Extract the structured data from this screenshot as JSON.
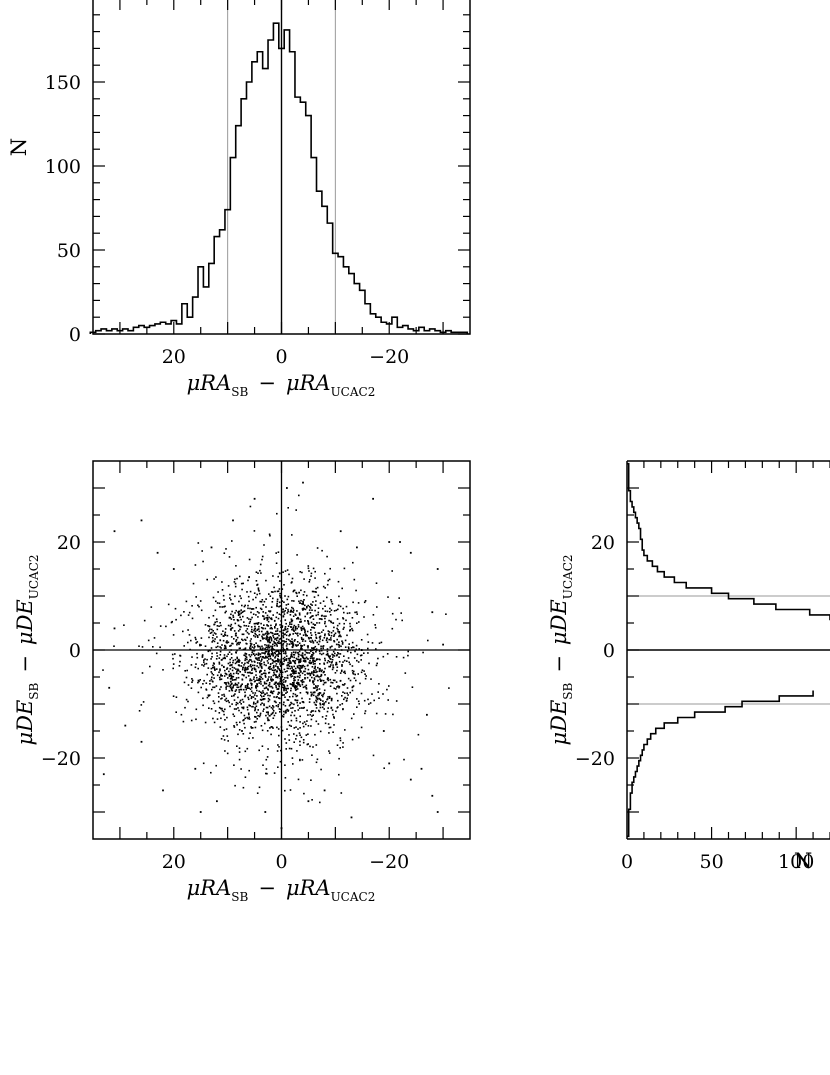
{
  "chart_data": [
    {
      "panel": "ra-histogram",
      "type": "histogram",
      "xlim": [
        35,
        -35
      ],
      "ylim": [
        0,
        200
      ],
      "x_ticks": [
        20,
        0,
        -20
      ],
      "x_tick_labels": [
        "20",
        "0",
        "−20"
      ],
      "y_ticks": [
        0,
        50,
        100,
        150
      ],
      "y_tick_labels": [
        "0",
        "50",
        "100",
        "150"
      ],
      "xlabel": {
        "sym": "μRA",
        "sub1": "SB",
        "dash": "−",
        "sub2": "UCAC2"
      },
      "ylabel": "N",
      "reference_lines_x": [
        10,
        0,
        -10
      ],
      "bin_width": 1,
      "bins": [
        {
          "x": 35,
          "n": 1
        },
        {
          "x": 34,
          "n": 2
        },
        {
          "x": 33,
          "n": 3
        },
        {
          "x": 32,
          "n": 2
        },
        {
          "x": 31,
          "n": 3
        },
        {
          "x": 30,
          "n": 2
        },
        {
          "x": 29,
          "n": 3
        },
        {
          "x": 28,
          "n": 2
        },
        {
          "x": 27,
          "n": 4
        },
        {
          "x": 26,
          "n": 5
        },
        {
          "x": 25,
          "n": 4
        },
        {
          "x": 24,
          "n": 5
        },
        {
          "x": 23,
          "n": 6
        },
        {
          "x": 22,
          "n": 7
        },
        {
          "x": 21,
          "n": 6
        },
        {
          "x": 20,
          "n": 8
        },
        {
          "x": 19,
          "n": 6
        },
        {
          "x": 18,
          "n": 18
        },
        {
          "x": 17,
          "n": 10
        },
        {
          "x": 16,
          "n": 22
        },
        {
          "x": 15,
          "n": 40
        },
        {
          "x": 14,
          "n": 28
        },
        {
          "x": 13,
          "n": 42
        },
        {
          "x": 12,
          "n": 58
        },
        {
          "x": 11,
          "n": 62
        },
        {
          "x": 10,
          "n": 74
        },
        {
          "x": 9,
          "n": 105
        },
        {
          "x": 8,
          "n": 124
        },
        {
          "x": 7,
          "n": 140
        },
        {
          "x": 6,
          "n": 150
        },
        {
          "x": 5,
          "n": 162
        },
        {
          "x": 4,
          "n": 168
        },
        {
          "x": 3,
          "n": 158
        },
        {
          "x": 2,
          "n": 175
        },
        {
          "x": 1,
          "n": 185
        },
        {
          "x": 0,
          "n": 170
        },
        {
          "x": -1,
          "n": 181
        },
        {
          "x": -2,
          "n": 168
        },
        {
          "x": -3,
          "n": 141
        },
        {
          "x": -4,
          "n": 138
        },
        {
          "x": -5,
          "n": 130
        },
        {
          "x": -6,
          "n": 105
        },
        {
          "x": -7,
          "n": 85
        },
        {
          "x": -8,
          "n": 76
        },
        {
          "x": -9,
          "n": 66
        },
        {
          "x": -10,
          "n": 48
        },
        {
          "x": -11,
          "n": 46
        },
        {
          "x": -12,
          "n": 40
        },
        {
          "x": -13,
          "n": 36
        },
        {
          "x": -14,
          "n": 30
        },
        {
          "x": -15,
          "n": 26
        },
        {
          "x": -16,
          "n": 18
        },
        {
          "x": -17,
          "n": 12
        },
        {
          "x": -18,
          "n": 10
        },
        {
          "x": -19,
          "n": 7
        },
        {
          "x": -20,
          "n": 6
        },
        {
          "x": -21,
          "n": 10
        },
        {
          "x": -22,
          "n": 4
        },
        {
          "x": -23,
          "n": 5
        },
        {
          "x": -24,
          "n": 3
        },
        {
          "x": -25,
          "n": 2
        },
        {
          "x": -26,
          "n": 4
        },
        {
          "x": -27,
          "n": 2
        },
        {
          "x": -28,
          "n": 3
        },
        {
          "x": -29,
          "n": 2
        },
        {
          "x": -30,
          "n": 1
        },
        {
          "x": -31,
          "n": 2
        },
        {
          "x": -32,
          "n": 1
        },
        {
          "x": -33,
          "n": 1
        },
        {
          "x": -34,
          "n": 1
        }
      ]
    },
    {
      "panel": "scatter",
      "type": "scatter",
      "xlim": [
        35,
        -35
      ],
      "ylim": [
        -35,
        35
      ],
      "x_ticks": [
        20,
        0,
        -20
      ],
      "x_tick_labels": [
        "20",
        "0",
        "−20"
      ],
      "y_ticks": [
        20,
        0,
        -20
      ],
      "y_tick_labels": [
        "20",
        "0",
        "−20"
      ],
      "xlabel": {
        "sym": "μRA",
        "sub1": "SB",
        "dash": "−",
        "sub2": "UCAC2"
      },
      "ylabel": {
        "sym": "μDE",
        "sub1": "SB",
        "dash": "−",
        "sub2": "UCAC2"
      },
      "reference_lines_x": [
        0
      ],
      "reference_lines_y": [
        0
      ],
      "n_points_approx": 2600,
      "distribution": "centrally concentrated cloud around (0, -2), spread ~8 in each axis",
      "points": [
        [
          31,
          22
        ],
        [
          33,
          -23
        ],
        [
          26,
          24
        ],
        [
          23,
          18
        ],
        [
          20,
          15
        ],
        [
          29,
          -14
        ],
        [
          26,
          -17
        ],
        [
          22,
          -26
        ],
        [
          16,
          -22
        ],
        [
          12,
          -28
        ],
        [
          5,
          28
        ],
        [
          -1,
          30
        ],
        [
          -4,
          31
        ],
        [
          -17,
          28
        ],
        [
          -20,
          20
        ],
        [
          -22,
          20
        ],
        [
          -24,
          18
        ],
        [
          -29,
          15
        ],
        [
          -20,
          -21
        ],
        [
          -26,
          -22
        ],
        [
          -28,
          -27
        ],
        [
          -29,
          -30
        ],
        [
          -24,
          -24
        ],
        [
          0,
          -33
        ],
        [
          3,
          -30
        ],
        [
          -8,
          -26
        ],
        [
          13,
          19
        ],
        [
          9,
          24
        ],
        [
          -11,
          22
        ],
        [
          -14,
          19
        ],
        [
          -19,
          -15
        ],
        [
          31,
          4
        ],
        [
          32,
          -7
        ],
        [
          -28,
          7
        ],
        [
          -30,
          1
        ],
        [
          -27,
          -12
        ],
        [
          15,
          -30
        ],
        [
          -5,
          -28
        ],
        [
          -13,
          -31
        ]
      ]
    },
    {
      "panel": "de-histogram",
      "type": "histogram",
      "orientation": "horizontal",
      "xlim": [
        0,
        120
      ],
      "ylim": [
        -35,
        35
      ],
      "x_ticks": [
        0,
        50,
        100
      ],
      "x_tick_labels": [
        "0",
        "50",
        "100"
      ],
      "y_ticks": [
        20,
        0,
        -20
      ],
      "y_tick_labels": [
        "20",
        "0",
        "−20"
      ],
      "xlabel": "N",
      "ylabel": {
        "sym": "μDE",
        "sub1": "SB",
        "dash": "−",
        "sub2": "UCAC2"
      },
      "reference_lines_y": [
        10,
        0,
        -10
      ],
      "bin_width": 1,
      "bins": [
        {
          "y": 34,
          "n": 1
        },
        {
          "y": 33,
          "n": 1
        },
        {
          "y": 32,
          "n": 1
        },
        {
          "y": 31,
          "n": 1
        },
        {
          "y": 30,
          "n": 1
        },
        {
          "y": 29,
          "n": 2
        },
        {
          "y": 28,
          "n": 2
        },
        {
          "y": 27,
          "n": 3
        },
        {
          "y": 26,
          "n": 4
        },
        {
          "y": 25,
          "n": 5
        },
        {
          "y": 24,
          "n": 6
        },
        {
          "y": 23,
          "n": 7
        },
        {
          "y": 22,
          "n": 8
        },
        {
          "y": 21,
          "n": 8
        },
        {
          "y": 20,
          "n": 9
        },
        {
          "y": 19,
          "n": 9
        },
        {
          "y": 18,
          "n": 10
        },
        {
          "y": 17,
          "n": 12
        },
        {
          "y": 16,
          "n": 15
        },
        {
          "y": 15,
          "n": 18
        },
        {
          "y": 14,
          "n": 22
        },
        {
          "y": 13,
          "n": 28
        },
        {
          "y": 12,
          "n": 35
        },
        {
          "y": 11,
          "n": 50
        },
        {
          "y": 10,
          "n": 60
        },
        {
          "y": 9,
          "n": 75
        },
        {
          "y": 8,
          "n": 88
        },
        {
          "y": 7,
          "n": 108
        },
        {
          "y": 6,
          "n": 120
        },
        {
          "y": -8,
          "n": 110
        },
        {
          "y": -9,
          "n": 90
        },
        {
          "y": -10,
          "n": 68
        },
        {
          "y": -11,
          "n": 58
        },
        {
          "y": -12,
          "n": 40
        },
        {
          "y": -13,
          "n": 30
        },
        {
          "y": -14,
          "n": 22
        },
        {
          "y": -15,
          "n": 17
        },
        {
          "y": -16,
          "n": 14
        },
        {
          "y": -17,
          "n": 12
        },
        {
          "y": -18,
          "n": 10
        },
        {
          "y": -19,
          "n": 9
        },
        {
          "y": -20,
          "n": 8
        },
        {
          "y": -21,
          "n": 7
        },
        {
          "y": -22,
          "n": 6
        },
        {
          "y": -23,
          "n": 5
        },
        {
          "y": -24,
          "n": 4
        },
        {
          "y": -25,
          "n": 3
        },
        {
          "y": -26,
          "n": 3
        },
        {
          "y": -27,
          "n": 2
        },
        {
          "y": -28,
          "n": 2
        },
        {
          "y": -29,
          "n": 2
        },
        {
          "y": -30,
          "n": 1
        },
        {
          "y": -31,
          "n": 1
        },
        {
          "y": -32,
          "n": 1
        },
        {
          "y": -33,
          "n": 1
        },
        {
          "y": -34,
          "n": 1
        }
      ]
    }
  ]
}
